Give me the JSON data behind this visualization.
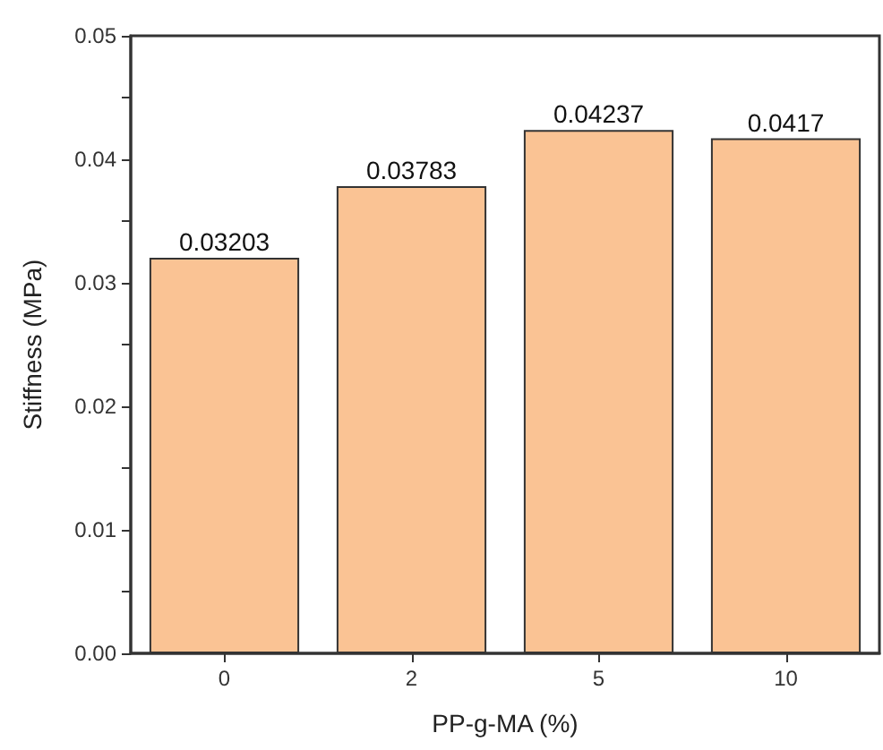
{
  "chart_data": {
    "type": "bar",
    "xlabel": "PP-g-MA (%)",
    "ylabel": "Stiffness (MPa)",
    "categories": [
      "0",
      "2",
      "5",
      "10"
    ],
    "values": [
      0.03203,
      0.03783,
      0.04237,
      0.0417
    ],
    "color": "#fac394",
    "ylim": [
      0,
      0.05
    ],
    "yticks": [
      {
        "value": 0,
        "label": "0.00"
      },
      {
        "value": 0.005,
        "label": null
      },
      0.01,
      {
        "value": 0.015,
        "label": null
      },
      0.02,
      {
        "value": 0.025,
        "label": null
      },
      0.03,
      {
        "value": 0.035,
        "label": null
      },
      0.04,
      {
        "value": 0.045,
        "label": null
      },
      0.05
    ],
    "data_labels": true,
    "grid": false
  }
}
